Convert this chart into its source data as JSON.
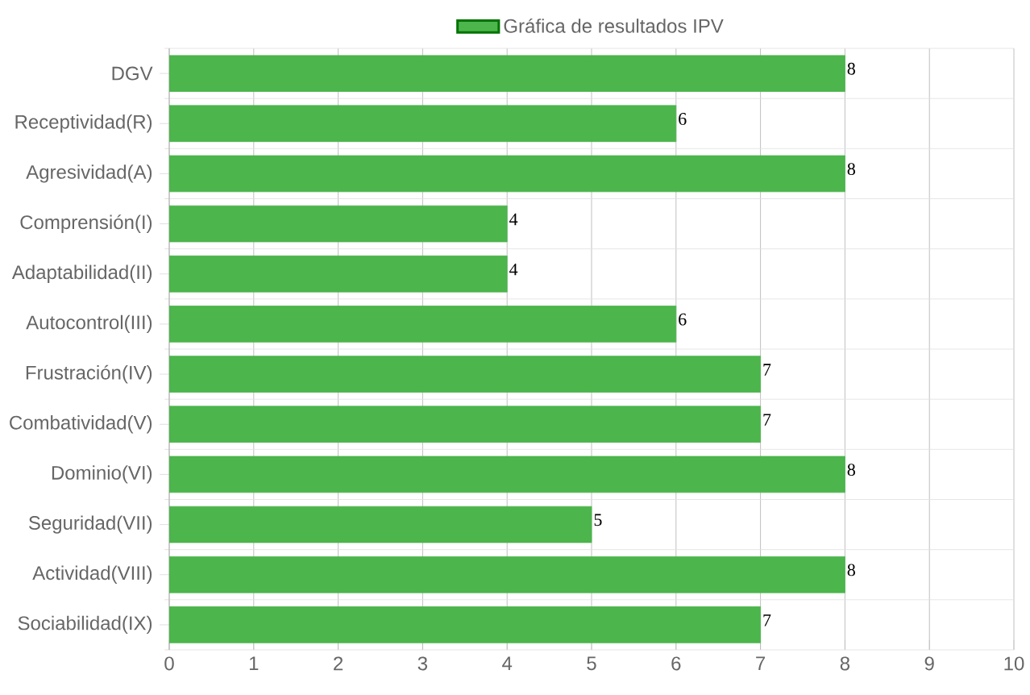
{
  "chart_data": {
    "type": "bar",
    "orientation": "horizontal",
    "categories": [
      "DGV",
      "Receptividad(R)",
      "Agresividad(A)",
      "Comprensión(I)",
      "Adaptabilidad(II)",
      "Autocontrol(III)",
      "Frustración(IV)",
      "Combatividad(V)",
      "Dominio(VI)",
      "Seguridad(VII)",
      "Actividad(VIII)",
      "Sociabilidad(IX)"
    ],
    "series": [
      {
        "name": "Gráfica de resultados IPV",
        "color": "#4cb54c",
        "values": [
          8,
          6,
          8,
          4,
          4,
          6,
          7,
          7,
          8,
          5,
          8,
          7
        ]
      }
    ],
    "xlim": [
      0,
      10
    ],
    "xticks": [
      0,
      1,
      2,
      3,
      4,
      5,
      6,
      7,
      8,
      9,
      10
    ],
    "grid": true,
    "legend": "top",
    "data_labels": true
  }
}
